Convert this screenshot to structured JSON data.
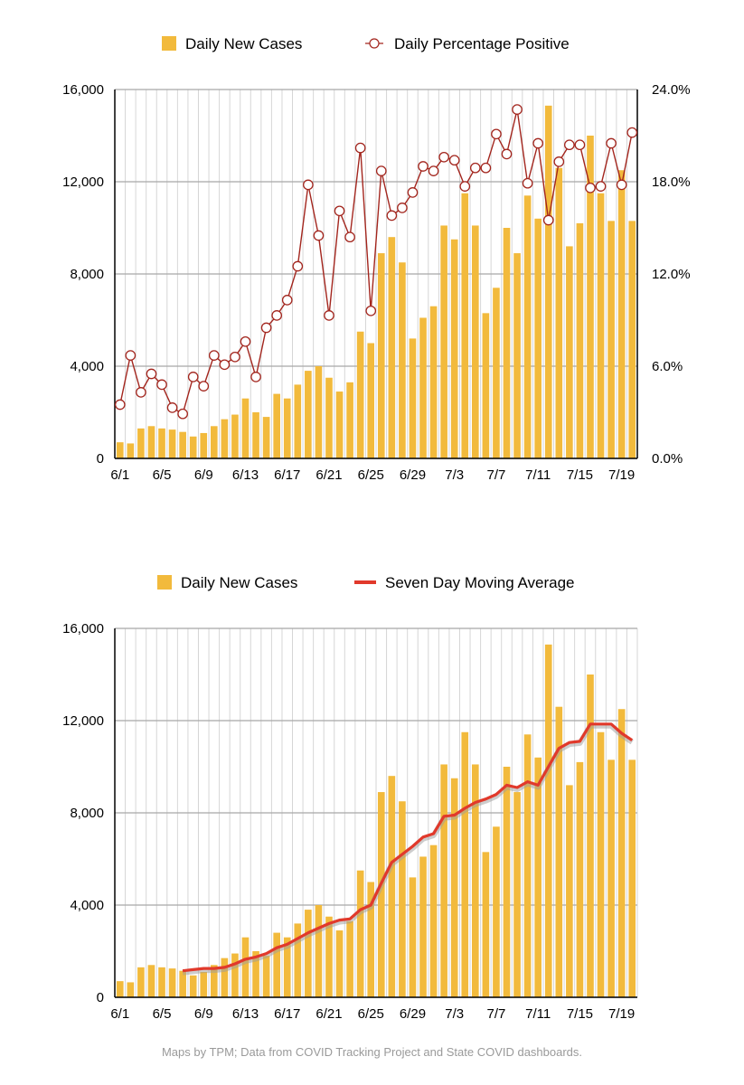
{
  "colors": {
    "bar": "#F2BA3C",
    "pct_line": "#A3261E",
    "avg_line": "#E1392B",
    "grid_major": "#A8A8A8",
    "grid_minor": "#D6D6D6",
    "axis": "#000000"
  },
  "footer": "Maps by TPM; Data from COVID Tracking Project and State COVID dashboards.",
  "chart_data": [
    {
      "type": "bar",
      "legend": {
        "bars": "Daily New Cases",
        "line": "Daily Percentage Positive",
        "placement": "top-center"
      },
      "categories": [
        "6/1",
        "6/2",
        "6/3",
        "6/4",
        "6/5",
        "6/6",
        "6/7",
        "6/8",
        "6/9",
        "6/10",
        "6/11",
        "6/12",
        "6/13",
        "6/14",
        "6/15",
        "6/16",
        "6/17",
        "6/18",
        "6/19",
        "6/20",
        "6/21",
        "6/22",
        "6/23",
        "6/24",
        "6/25",
        "6/26",
        "6/27",
        "6/28",
        "6/29",
        "6/30",
        "7/1",
        "7/2",
        "7/3",
        "7/4",
        "7/5",
        "7/6",
        "7/7",
        "7/8",
        "7/9",
        "7/10",
        "7/11",
        "7/12",
        "7/13",
        "7/14",
        "7/15",
        "7/16",
        "7/17",
        "7/18",
        "7/19",
        "7/20"
      ],
      "x_tick_labels": [
        "6/1",
        "6/5",
        "6/9",
        "6/13",
        "6/17",
        "6/21",
        "6/25",
        "6/29",
        "7/3",
        "7/7",
        "7/11",
        "7/15",
        "7/19"
      ],
      "x_tick_every": 4,
      "series": [
        {
          "name": "Daily New Cases",
          "axis": "left",
          "values": [
            700,
            650,
            1300,
            1400,
            1300,
            1250,
            1150,
            950,
            1100,
            1400,
            1700,
            1900,
            2600,
            2000,
            1800,
            2800,
            2600,
            3200,
            3800,
            4000,
            3500,
            2900,
            3300,
            5500,
            5000,
            8900,
            9600,
            8500,
            5200,
            6100,
            6600,
            10100,
            9500,
            11500,
            10100,
            6300,
            7400,
            10000,
            8900,
            11400,
            10400,
            15300,
            12600,
            9200,
            10200,
            14000,
            11500,
            10300,
            12500,
            10300
          ]
        },
        {
          "name": "Daily Percentage Positive",
          "axis": "right",
          "type": "line",
          "values": [
            3.5,
            6.7,
            4.3,
            5.5,
            4.8,
            3.3,
            2.9,
            5.3,
            4.7,
            6.7,
            6.1,
            6.6,
            7.6,
            5.3,
            8.5,
            9.3,
            10.3,
            12.5,
            17.8,
            14.5,
            9.3,
            16.1,
            14.4,
            20.2,
            9.6,
            18.7,
            15.8,
            16.3,
            17.3,
            19.0,
            18.7,
            19.6,
            19.4,
            17.7,
            18.9,
            18.9,
            21.1,
            19.8,
            22.7,
            17.9,
            20.5,
            15.5,
            19.3,
            20.4,
            20.4,
            17.6,
            17.7,
            20.5,
            17.8,
            21.2
          ]
        }
      ],
      "y_left": {
        "min": 0,
        "max": 16000,
        "ticks": [
          "0",
          "4,000",
          "8,000",
          "12,000",
          "16,000"
        ]
      },
      "y_right": {
        "min": 0,
        "max": 24,
        "ticks": [
          "0.0%",
          "6.0%",
          "12.0%",
          "18.0%",
          "24.0%"
        ]
      },
      "title": "",
      "xlabel": "",
      "ylabel": "",
      "grid": true
    },
    {
      "type": "bar",
      "legend": {
        "bars": "Daily New Cases",
        "line": "Seven Day Moving Average",
        "placement": "top-center"
      },
      "categories": [
        "6/1",
        "6/2",
        "6/3",
        "6/4",
        "6/5",
        "6/6",
        "6/7",
        "6/8",
        "6/9",
        "6/10",
        "6/11",
        "6/12",
        "6/13",
        "6/14",
        "6/15",
        "6/16",
        "6/17",
        "6/18",
        "6/19",
        "6/20",
        "6/21",
        "6/22",
        "6/23",
        "6/24",
        "6/25",
        "6/26",
        "6/27",
        "6/28",
        "6/29",
        "6/30",
        "7/1",
        "7/2",
        "7/3",
        "7/4",
        "7/5",
        "7/6",
        "7/7",
        "7/8",
        "7/9",
        "7/10",
        "7/11",
        "7/12",
        "7/13",
        "7/14",
        "7/15",
        "7/16",
        "7/17",
        "7/18",
        "7/19",
        "7/20"
      ],
      "x_tick_labels": [
        "6/1",
        "6/5",
        "6/9",
        "6/13",
        "6/17",
        "6/21",
        "6/25",
        "6/29",
        "7/3",
        "7/7",
        "7/11",
        "7/15",
        "7/19"
      ],
      "x_tick_every": 4,
      "series": [
        {
          "name": "Daily New Cases",
          "axis": "left",
          "values": [
            700,
            650,
            1300,
            1400,
            1300,
            1250,
            1150,
            950,
            1100,
            1400,
            1700,
            1900,
            2600,
            2000,
            1800,
            2800,
            2600,
            3200,
            3800,
            4000,
            3500,
            2900,
            3300,
            5500,
            5000,
            8900,
            9600,
            8500,
            5200,
            6100,
            6600,
            10100,
            9500,
            11500,
            10100,
            6300,
            7400,
            10000,
            8900,
            11400,
            10400,
            15300,
            12600,
            9200,
            10200,
            14000,
            11500,
            10300,
            12500,
            10300
          ]
        },
        {
          "name": "Seven Day Moving Average",
          "axis": "left",
          "type": "line",
          "values": [
            null,
            null,
            null,
            null,
            null,
            null,
            1150,
            1200,
            1250,
            1250,
            1300,
            1450,
            1650,
            1750,
            1900,
            2150,
            2300,
            2550,
            2800,
            3000,
            3200,
            3350,
            3400,
            3800,
            4000,
            4950,
            5850,
            6200,
            6550,
            6950,
            7100,
            7850,
            7900,
            8200,
            8450,
            8600,
            8800,
            9200,
            9100,
            9350,
            9200,
            10000,
            10800,
            11050,
            11100,
            11850,
            11850,
            11850,
            11450,
            11150
          ]
        }
      ],
      "y_left": {
        "min": 0,
        "max": 16000,
        "ticks": [
          "0",
          "4,000",
          "8,000",
          "12,000",
          "16,000"
        ]
      },
      "title": "",
      "xlabel": "",
      "ylabel": "",
      "grid": true
    }
  ]
}
